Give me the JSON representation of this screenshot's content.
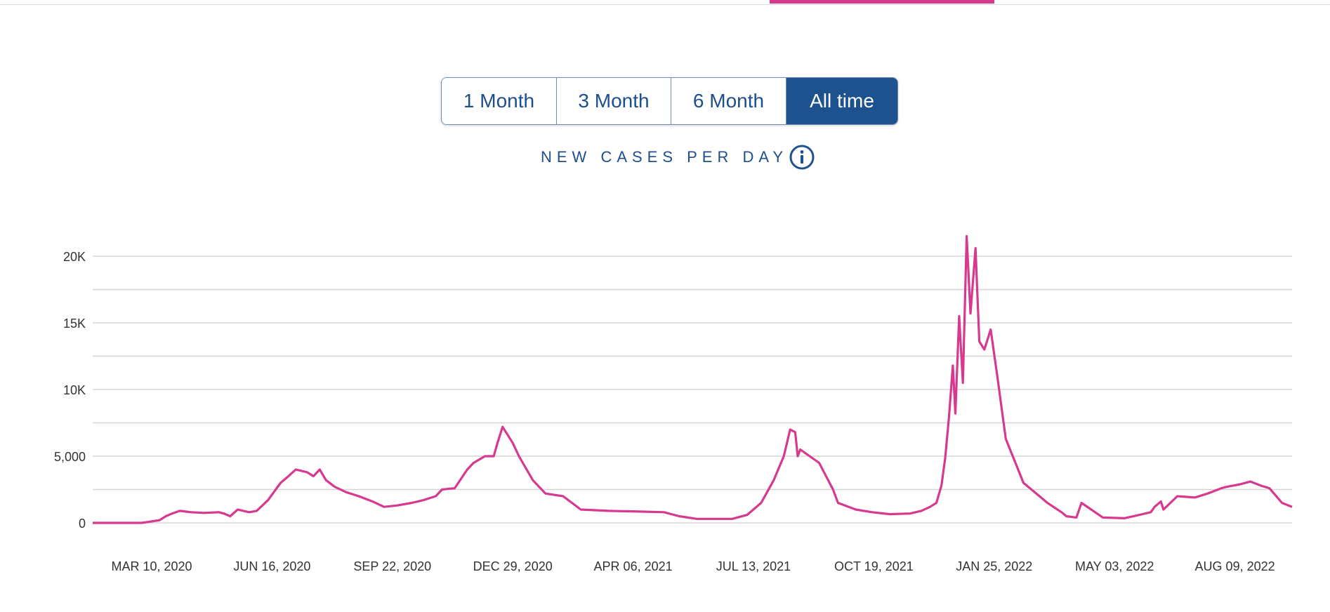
{
  "range_selector": {
    "options": [
      {
        "label": "1 Month",
        "active": false
      },
      {
        "label": "3 Month",
        "active": false
      },
      {
        "label": "6 Month",
        "active": false
      },
      {
        "label": "All time",
        "active": true
      }
    ]
  },
  "colors": {
    "line": "#d6398f",
    "accent": "#1e528f",
    "grid": "#d5d5d5"
  },
  "info_icon": "info-circle-icon",
  "chart_data": {
    "type": "line",
    "title": "NEW CASES PER DAY",
    "xlabel": "",
    "ylabel": "",
    "ylim": [
      -1500,
      22000
    ],
    "grid": true,
    "y_ticks": [
      {
        "value": 0,
        "label": "0"
      },
      {
        "value": 5000,
        "label": "5,000"
      },
      {
        "value": 10000,
        "label": "10K"
      },
      {
        "value": 15000,
        "label": "15K"
      },
      {
        "value": 20000,
        "label": "20K"
      }
    ],
    "x_ticks": [
      "MAR 10, 2020",
      "JUN 16, 2020",
      "SEP 22, 2020",
      "DEC 29, 2020",
      "APR 06, 2021",
      "JUL 13, 2021",
      "OCT 19, 2021",
      "JAN 25, 2022",
      "MAY 03, 2022",
      "AUG 09, 2022"
    ],
    "series": [
      {
        "x": [
          "2020-02-22",
          "2020-03-10",
          "2020-04-01",
          "2020-04-15",
          "2020-04-20",
          "2020-04-25",
          "2020-05-01",
          "2020-05-10",
          "2020-05-20",
          "2020-06-01",
          "2020-06-05",
          "2020-06-10",
          "2020-06-16",
          "2020-06-25",
          "2020-07-01",
          "2020-07-10",
          "2020-07-20",
          "2020-07-25",
          "2020-08-01",
          "2020-08-10",
          "2020-08-15",
          "2020-08-20",
          "2020-08-25",
          "2020-09-01",
          "2020-09-10",
          "2020-09-20",
          "2020-10-01",
          "2020-10-10",
          "2020-10-20",
          "2020-11-01",
          "2020-11-10",
          "2020-11-20",
          "2020-11-25",
          "2020-12-05",
          "2020-12-15",
          "2020-12-20",
          "2020-12-29",
          "2021-01-05",
          "2021-01-08",
          "2021-01-12",
          "2021-01-20",
          "2021-01-25",
          "2021-02-05",
          "2021-02-15",
          "2021-03-01",
          "2021-03-15",
          "2021-04-06",
          "2021-05-01",
          "2021-05-20",
          "2021-06-01",
          "2021-06-15",
          "2021-07-01",
          "2021-07-13",
          "2021-07-25",
          "2021-08-05",
          "2021-08-15",
          "2021-08-23",
          "2021-08-26",
          "2021-08-28",
          "2021-09-01",
          "2021-09-03",
          "2021-09-05",
          "2021-09-20",
          "2021-10-01",
          "2021-10-05",
          "2021-10-19",
          "2021-11-01",
          "2021-11-15",
          "2021-12-01",
          "2021-12-10",
          "2021-12-17",
          "2021-12-22",
          "2021-12-26",
          "2021-12-29",
          "2022-01-01",
          "2022-01-04",
          "2022-01-06",
          "2022-01-09",
          "2022-01-12",
          "2022-01-15",
          "2022-01-18",
          "2022-01-22",
          "2022-01-25",
          "2022-01-29",
          "2022-02-03",
          "2022-02-08",
          "2022-02-15",
          "2022-03-01",
          "2022-03-20",
          "2022-04-01",
          "2022-04-04",
          "2022-04-12",
          "2022-04-16",
          "2022-05-03",
          "2022-05-20",
          "2022-06-01",
          "2022-06-10",
          "2022-06-13",
          "2022-06-18",
          "2022-06-20",
          "2022-07-01",
          "2022-07-15",
          "2022-07-25",
          "2022-08-05",
          "2022-08-09",
          "2022-08-20",
          "2022-08-28",
          "2022-09-05",
          "2022-09-12",
          "2022-09-22",
          "2022-09-30"
        ],
        "y": [
          0,
          0,
          0,
          200,
          500,
          700,
          900,
          800,
          750,
          800,
          700,
          500,
          1000,
          800,
          900,
          1700,
          3000,
          3400,
          4000,
          3800,
          3500,
          4000,
          3200,
          2700,
          2300,
          2000,
          1600,
          1200,
          1300,
          1500,
          1700,
          2000,
          2500,
          2600,
          4000,
          4500,
          5000,
          5000,
          6000,
          7200,
          6000,
          5000,
          3200,
          2200,
          2000,
          1000,
          900,
          850,
          800,
          500,
          300,
          300,
          300,
          600,
          1500,
          3200,
          5000,
          6200,
          7000,
          6800,
          5000,
          5500,
          4500,
          2500,
          1500,
          1000,
          800,
          650,
          700,
          900,
          1200,
          1500,
          2800,
          4900,
          8000,
          11800,
          8200,
          15500,
          10500,
          21500,
          15700,
          20600,
          13600,
          13000,
          14500,
          11200,
          6300,
          3000,
          1500,
          750,
          500,
          400,
          1500,
          400,
          350,
          600,
          800,
          1200,
          1600,
          1000,
          2000,
          1900,
          2200,
          2600,
          2700,
          2900,
          3100,
          2800,
          2600,
          1500,
          1200
        ]
      }
    ]
  }
}
